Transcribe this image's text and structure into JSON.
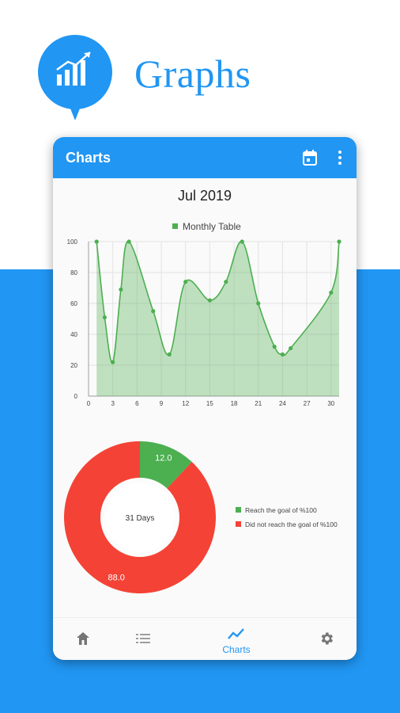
{
  "promo": {
    "title": "Graphs",
    "badge_icon": "bar-chart-trend-icon",
    "accent_color": "#2196f3"
  },
  "app_bar": {
    "title": "Charts",
    "actions": [
      "calendar-icon",
      "more-vertical-icon"
    ]
  },
  "month_label": "Jul 2019",
  "chart_data": [
    {
      "type": "area",
      "title": "",
      "legend": [
        "Monthly Table"
      ],
      "legend_position": "top-center",
      "series": [
        {
          "name": "Monthly Table",
          "color": "#4caf50",
          "x": [
            1,
            2,
            3,
            4,
            5,
            8,
            10,
            12,
            15,
            17,
            19,
            21,
            23,
            24,
            25,
            30,
            31
          ],
          "y": [
            100,
            51,
            22,
            69,
            100,
            55,
            27,
            74,
            62,
            74,
            100,
            60,
            32,
            27,
            31,
            67,
            100
          ]
        }
      ],
      "xlim": [
        0,
        31
      ],
      "ylim": [
        0,
        100
      ],
      "xticks": [
        0,
        3,
        6,
        9,
        12,
        15,
        18,
        21,
        24,
        27,
        30
      ],
      "yticks": [
        0,
        20,
        40,
        60,
        80,
        100
      ],
      "grid": true
    },
    {
      "type": "pie",
      "donut": true,
      "center_label": "31 Days",
      "slices": [
        {
          "label": "Reach the goal of %100",
          "value": 12.0,
          "display": "12.0",
          "color": "#4caf50"
        },
        {
          "label": "Did not reach the goal of %100",
          "value": 88.0,
          "display": "88.0",
          "color": "#f44336"
        }
      ],
      "legend_position": "right"
    }
  ],
  "bottom_nav": {
    "items": [
      {
        "icon": "home-icon",
        "label": ""
      },
      {
        "icon": "list-icon",
        "label": ""
      },
      {
        "icon": "chart-line-icon",
        "label": "Charts",
        "active": true
      },
      {
        "icon": "settings-icon",
        "label": ""
      }
    ]
  }
}
